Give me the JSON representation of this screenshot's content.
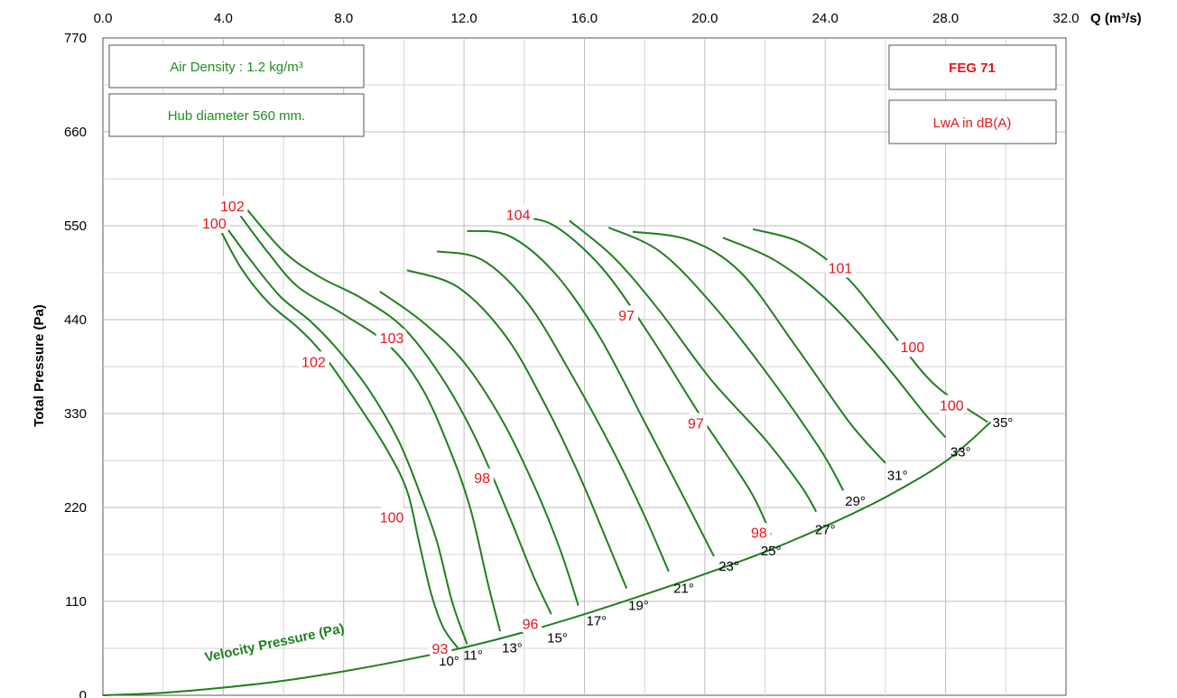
{
  "chart_data": {
    "type": "line",
    "xlabel": "Q (m³/s)",
    "ylabel": "Total Pressure (Pa)",
    "xlim": [
      0,
      32
    ],
    "ylim": [
      0,
      770
    ],
    "x_ticks": [
      "0.0",
      "4.0",
      "8.0",
      "12.0",
      "16.0",
      "20.0",
      "24.0",
      "28.0",
      "32.0"
    ],
    "y_ticks": [
      "0",
      "110",
      "220",
      "330",
      "440",
      "550",
      "660",
      "770"
    ],
    "grid": true,
    "colors": {
      "curves": "#1f7f1f",
      "noise": "#e8141b",
      "info_green": "#1f8f1f"
    },
    "info_boxes": {
      "air_density": "Air Density : 1.2 kg/m³",
      "hub_diameter": "Hub diameter 560 mm.",
      "model": "FEG 71",
      "lwa": "LwA in dB(A)"
    },
    "velocity_pressure": {
      "label": "Velocity Pressure (Pa)",
      "x": [
        0,
        2,
        4,
        6,
        8,
        10,
        12,
        14,
        16,
        18,
        20,
        22,
        24,
        26,
        28,
        29.5
      ],
      "y": [
        0,
        3,
        9,
        17,
        28,
        41,
        56,
        74,
        95,
        118,
        142,
        168,
        198,
        232,
        274,
        320
      ]
    },
    "series": [
      {
        "angle": "10°",
        "x": [
          3.9,
          4.6,
          5.5,
          6.5,
          7.3,
          8.3,
          9.4,
          10.1,
          10.5,
          10.9,
          11.3,
          11.8
        ],
        "y": [
          545,
          500,
          460,
          430,
          400,
          350,
          290,
          240,
          180,
          120,
          80,
          55
        ]
      },
      {
        "angle": "11°",
        "x": [
          4.0,
          4.9,
          5.9,
          6.9,
          7.8,
          8.8,
          9.8,
          10.5,
          11.1,
          11.6,
          12.1
        ],
        "y": [
          553,
          510,
          467,
          438,
          405,
          360,
          300,
          240,
          180,
          110,
          60
        ]
      },
      {
        "angle": "13°",
        "x": [
          4.5,
          5.5,
          6.5,
          8.0,
          9.5,
          10.6,
          11.5,
          12.2,
          12.8,
          13.2
        ],
        "y": [
          565,
          518,
          478,
          446,
          410,
          360,
          290,
          220,
          130,
          75
        ]
      },
      {
        "angle": "15°",
        "x": [
          4.7,
          6.0,
          7.2,
          8.6,
          10.0,
          11.3,
          12.4,
          13.5,
          14.3,
          14.9
        ],
        "y": [
          573,
          520,
          490,
          465,
          430,
          370,
          300,
          210,
          140,
          95
        ]
      },
      {
        "angle": "17°",
        "x": [
          9.2,
          10.6,
          12.0,
          13.3,
          14.4,
          15.2,
          15.8
        ],
        "y": [
          473,
          438,
          390,
          320,
          240,
          170,
          105
        ]
      },
      {
        "angle": "19°",
        "x": [
          10.1,
          11.8,
          13.4,
          14.7,
          15.8,
          16.7,
          17.4
        ],
        "y": [
          498,
          478,
          420,
          340,
          260,
          185,
          125
        ]
      },
      {
        "angle": "21°",
        "x": [
          11.1,
          12.6,
          14.1,
          15.5,
          16.9,
          18.0,
          18.8
        ],
        "y": [
          520,
          510,
          460,
          380,
          290,
          210,
          145
        ]
      },
      {
        "angle": "23°",
        "x": [
          12.1,
          13.5,
          15.0,
          16.5,
          18.0,
          19.4,
          20.3
        ],
        "y": [
          544,
          538,
          495,
          420,
          320,
          225,
          163
        ]
      },
      {
        "angle": "25°",
        "x": [
          13.8,
          15.0,
          16.6,
          18.2,
          19.9,
          21.5,
          22.2
        ],
        "y": [
          560,
          550,
          500,
          420,
          325,
          240,
          188
        ]
      },
      {
        "angle": "27°",
        "x": [
          15.5,
          17.0,
          18.5,
          20.2,
          22.0,
          23.2,
          23.7
        ],
        "y": [
          556,
          512,
          450,
          370,
          300,
          245,
          215
        ]
      },
      {
        "angle": "29°",
        "x": [
          16.8,
          18.5,
          20.2,
          22.0,
          23.8,
          24.6
        ],
        "y": [
          548,
          520,
          460,
          380,
          290,
          240
        ]
      },
      {
        "angle": "31°",
        "x": [
          17.6,
          19.5,
          21.2,
          23.0,
          24.8,
          26.0
        ],
        "y": [
          543,
          533,
          495,
          410,
          320,
          272
        ]
      },
      {
        "angle": "33°",
        "x": [
          20.6,
          22.3,
          24.0,
          25.7,
          27.3,
          28.0
        ],
        "y": [
          536,
          510,
          465,
          400,
          330,
          302
        ]
      },
      {
        "angle": "35°",
        "x": [
          21.6,
          23.2,
          24.7,
          26.1,
          27.6,
          29.4
        ],
        "y": [
          546,
          530,
          490,
          430,
          365,
          320
        ]
      }
    ],
    "angle_labels": [
      {
        "text": "10°",
        "x": 11.5,
        "y": 35
      },
      {
        "text": "11°",
        "x": 12.3,
        "y": 42
      },
      {
        "text": "13°",
        "x": 13.6,
        "y": 50
      },
      {
        "text": "15°",
        "x": 15.1,
        "y": 62
      },
      {
        "text": "17°",
        "x": 16.4,
        "y": 82
      },
      {
        "text": "19°",
        "x": 17.8,
        "y": 100
      },
      {
        "text": "21°",
        "x": 19.3,
        "y": 120
      },
      {
        "text": "23°",
        "x": 20.8,
        "y": 146
      },
      {
        "text": "25°",
        "x": 22.2,
        "y": 164
      },
      {
        "text": "27°",
        "x": 24.0,
        "y": 189
      },
      {
        "text": "29°",
        "x": 25.0,
        "y": 222
      },
      {
        "text": "31°",
        "x": 26.4,
        "y": 252
      },
      {
        "text": "33°",
        "x": 28.5,
        "y": 280
      },
      {
        "text": "35°",
        "x": 29.9,
        "y": 314
      }
    ],
    "noise_labels": [
      {
        "text": "102",
        "x": 4.3,
        "y": 572
      },
      {
        "text": "100",
        "x": 3.7,
        "y": 552
      },
      {
        "text": "104",
        "x": 13.8,
        "y": 562
      },
      {
        "text": "101",
        "x": 24.5,
        "y": 500
      },
      {
        "text": "97",
        "x": 17.4,
        "y": 444
      },
      {
        "text": "103",
        "x": 9.6,
        "y": 418
      },
      {
        "text": "102",
        "x": 7.0,
        "y": 390
      },
      {
        "text": "100",
        "x": 26.9,
        "y": 407
      },
      {
        "text": "100",
        "x": 28.2,
        "y": 339
      },
      {
        "text": "97",
        "x": 19.7,
        "y": 318
      },
      {
        "text": "98",
        "x": 12.6,
        "y": 254
      },
      {
        "text": "100",
        "x": 9.6,
        "y": 208
      },
      {
        "text": "98",
        "x": 21.8,
        "y": 190
      },
      {
        "text": "96",
        "x": 14.2,
        "y": 83
      },
      {
        "text": "93",
        "x": 11.2,
        "y": 54
      }
    ]
  }
}
